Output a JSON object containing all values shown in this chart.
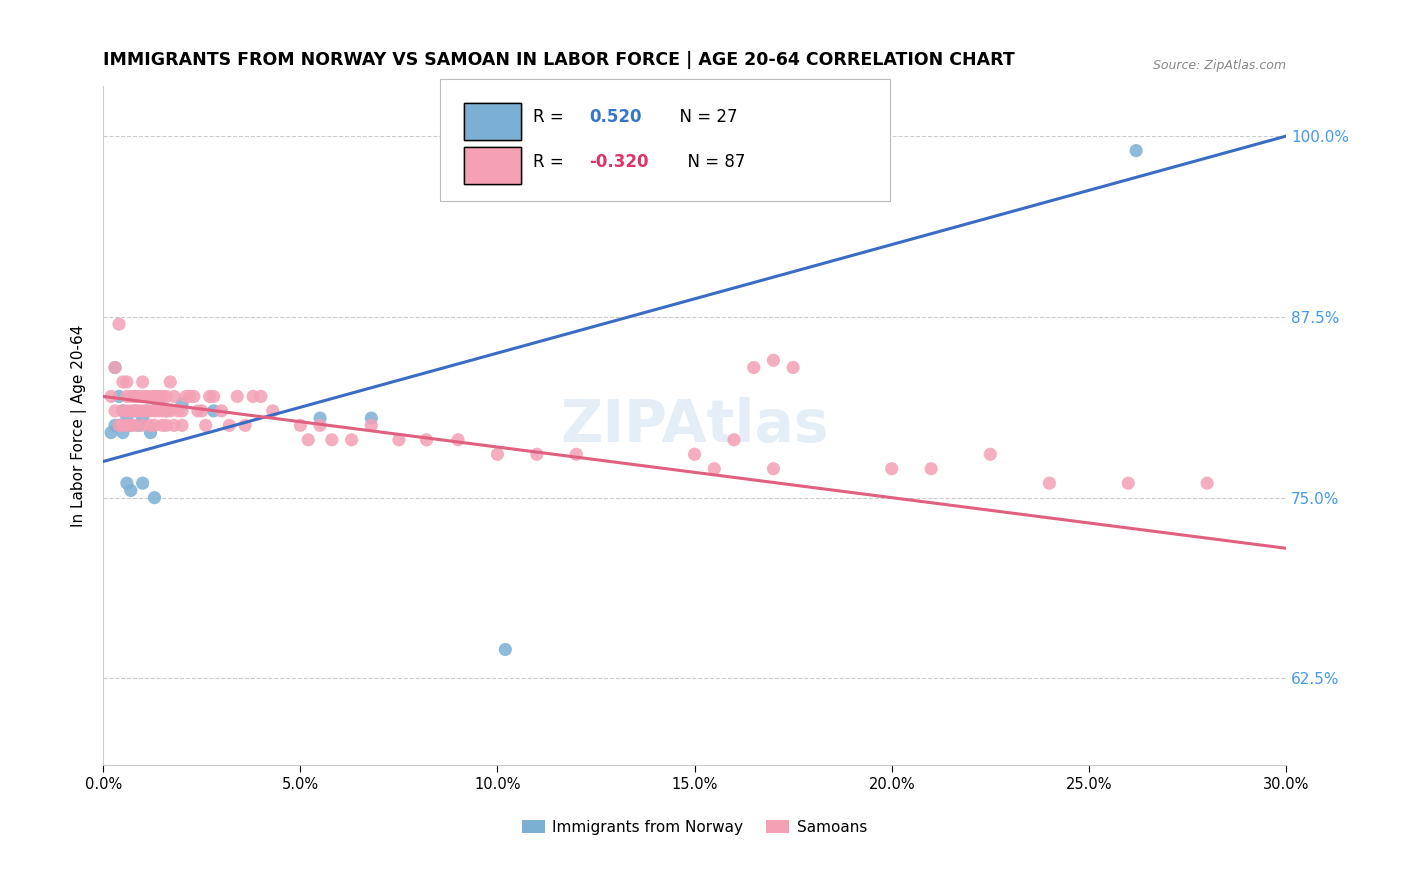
{
  "title": "IMMIGRANTS FROM NORWAY VS SAMOAN IN LABOR FORCE | AGE 20-64 CORRELATION CHART",
  "source": "Source: ZipAtlas.com",
  "ylabel_left": "In Labor Force | Age 20-64",
  "legend_norway_r": "0.520",
  "legend_norway_n": "27",
  "legend_samoan_r": "-0.320",
  "legend_samoan_n": "87",
  "norway_color": "#7bafd4",
  "samoan_color": "#f4a0b5",
  "norway_line_color": "#3b6cc4",
  "samoan_line_color": "#e06080",
  "right_tick_color": "#4499ee",
  "watermark_color": "#d0dff0",
  "xlim": [
    0.0,
    0.3
  ],
  "ylim": [
    0.565,
    1.035
  ],
  "norway_line_x0": 0.0,
  "norway_line_y0": 0.775,
  "norway_line_x1": 0.3,
  "norway_line_y1": 1.0,
  "samoan_line_x0": 0.0,
  "samoan_line_y0": 0.82,
  "samoan_line_x1": 0.3,
  "samoan_line_y1": 0.715,
  "norway_x": [
    0.002,
    0.003,
    0.003,
    0.004,
    0.004,
    0.005,
    0.005,
    0.006,
    0.006,
    0.007,
    0.007,
    0.008,
    0.008,
    0.009,
    0.01,
    0.01,
    0.011,
    0.012,
    0.013,
    0.014,
    0.016,
    0.02,
    0.028,
    0.055,
    0.068,
    0.102,
    0.262
  ],
  "norway_y": [
    0.795,
    0.84,
    0.8,
    0.82,
    0.8,
    0.81,
    0.795,
    0.805,
    0.76,
    0.8,
    0.755,
    0.82,
    0.81,
    0.8,
    0.805,
    0.76,
    0.81,
    0.795,
    0.75,
    0.815,
    0.81,
    0.815,
    0.81,
    0.805,
    0.805,
    0.645,
    0.99
  ],
  "samoan_x": [
    0.002,
    0.003,
    0.003,
    0.004,
    0.004,
    0.005,
    0.005,
    0.005,
    0.006,
    0.006,
    0.006,
    0.006,
    0.007,
    0.007,
    0.007,
    0.008,
    0.008,
    0.008,
    0.009,
    0.009,
    0.01,
    0.01,
    0.01,
    0.01,
    0.011,
    0.011,
    0.012,
    0.012,
    0.012,
    0.013,
    0.013,
    0.013,
    0.014,
    0.014,
    0.015,
    0.015,
    0.015,
    0.016,
    0.016,
    0.016,
    0.017,
    0.017,
    0.018,
    0.018,
    0.019,
    0.02,
    0.02,
    0.021,
    0.022,
    0.023,
    0.024,
    0.025,
    0.026,
    0.027,
    0.028,
    0.03,
    0.032,
    0.034,
    0.036,
    0.038,
    0.04,
    0.043,
    0.05,
    0.052,
    0.055,
    0.058,
    0.063,
    0.068,
    0.075,
    0.082,
    0.09,
    0.1,
    0.11,
    0.12,
    0.15,
    0.155,
    0.16,
    0.17,
    0.2,
    0.21,
    0.225,
    0.24,
    0.26,
    0.28,
    0.165,
    0.17,
    0.175
  ],
  "samoan_y": [
    0.82,
    0.84,
    0.81,
    0.87,
    0.8,
    0.81,
    0.83,
    0.8,
    0.82,
    0.81,
    0.8,
    0.83,
    0.82,
    0.81,
    0.8,
    0.82,
    0.81,
    0.8,
    0.82,
    0.81,
    0.82,
    0.81,
    0.8,
    0.83,
    0.82,
    0.81,
    0.82,
    0.81,
    0.8,
    0.82,
    0.81,
    0.8,
    0.82,
    0.81,
    0.82,
    0.81,
    0.8,
    0.81,
    0.8,
    0.82,
    0.83,
    0.81,
    0.8,
    0.82,
    0.81,
    0.81,
    0.8,
    0.82,
    0.82,
    0.82,
    0.81,
    0.81,
    0.8,
    0.82,
    0.82,
    0.81,
    0.8,
    0.82,
    0.8,
    0.82,
    0.82,
    0.81,
    0.8,
    0.79,
    0.8,
    0.79,
    0.79,
    0.8,
    0.79,
    0.79,
    0.79,
    0.78,
    0.78,
    0.78,
    0.78,
    0.77,
    0.79,
    0.77,
    0.77,
    0.77,
    0.78,
    0.76,
    0.76,
    0.76,
    0.84,
    0.845,
    0.84
  ]
}
